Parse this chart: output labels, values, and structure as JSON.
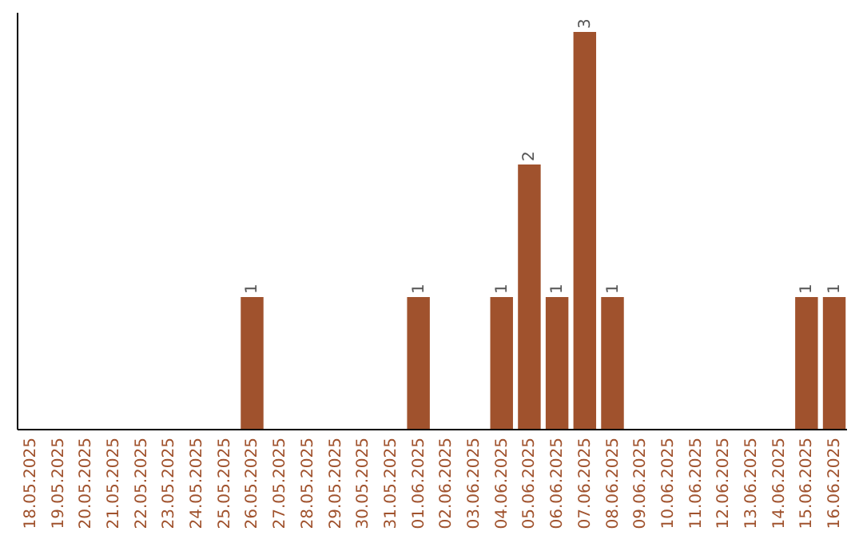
{
  "chart_data": {
    "type": "bar",
    "categories": [
      "18.05.2025",
      "19.05.2025",
      "20.05.2025",
      "21.05.2025",
      "22.05.2025",
      "23.05.2025",
      "24.05.2025",
      "25.05.2025",
      "26.05.2025",
      "27.05.2025",
      "28.05.2025",
      "29.05.2025",
      "30.05.2025",
      "31.05.2025",
      "01.06.2025",
      "02.06.2025",
      "03.06.2025",
      "04.06.2025",
      "05.06.2025",
      "06.06.2025",
      "07.06.2025",
      "08.06.2025",
      "09.06.2025",
      "10.06.2025",
      "11.06.2025",
      "12.06.2025",
      "13.06.2025",
      "14.06.2025",
      "15.06.2025",
      "16.06.2025"
    ],
    "values": [
      0,
      0,
      0,
      0,
      0,
      0,
      0,
      0,
      1,
      0,
      0,
      0,
      0,
      0,
      1,
      0,
      0,
      1,
      2,
      1,
      3,
      1,
      0,
      0,
      0,
      0,
      0,
      0,
      1,
      1
    ],
    "value_labels": [
      null,
      null,
      null,
      null,
      null,
      null,
      null,
      null,
      "1",
      null,
      null,
      null,
      null,
      null,
      "1",
      null,
      null,
      "1",
      "2",
      "1",
      "3",
      "1",
      null,
      null,
      null,
      null,
      null,
      null,
      "1",
      "1"
    ],
    "color": "#a0522d",
    "tick_labels": "x",
    "grid": false
  }
}
